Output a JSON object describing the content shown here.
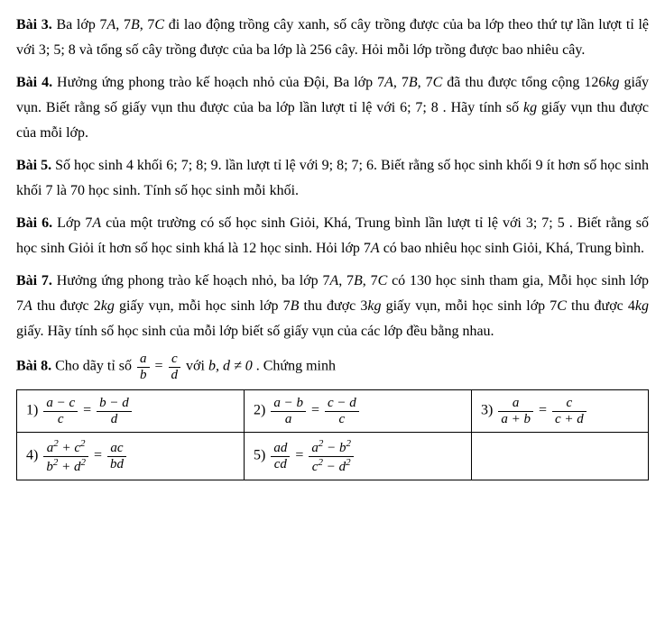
{
  "bai3": {
    "label": "Bài 3.",
    "t1": " Ba lớp 7",
    "A": "A",
    "t2": ", 7",
    "B": "B",
    "t3": ", 7",
    "C": "C",
    "t4": " đi lao động trồng cây xanh, số cây trồng được của ba lớp theo thứ tự lần lượt tỉ lệ với 3; 5; 8 và tổng số cây trồng được của ba lớp là 256 cây. Hỏi mỗi lớp trồng được bao nhiêu cây."
  },
  "bai4": {
    "label": "Bài 4.",
    "t1": " Hưởng ứng phong trào kế hoạch nhỏ của Đội, Ba lớp 7",
    "A": "A",
    "t2": ", 7",
    "B": "B",
    "t3": ", 7",
    "C": "C",
    "t4": " đã thu được tổng cộng 126",
    "kg1": "kg",
    "t5": " giấy vụn. Biết rằng số giấy vụn thu được của ba lớp lần lượt tỉ lệ với 6; 7; 8 . Hãy tính số ",
    "kg2": "kg",
    "t6": " giấy vụn thu được của mỗi lớp."
  },
  "bai5": {
    "label": "Bài 5.",
    "t1": " Số học sinh 4 khối 6; 7; 8; 9. lần lượt tỉ lệ với 9; 8; 7; 6. Biết rằng số học sinh khối 9 ít hơn số học sinh khối 7 là 70 học sinh. Tính số học sinh mỗi khối."
  },
  "bai6": {
    "label": "Bài 6.",
    "t1": " Lớp 7",
    "A": "A",
    "t2": " của một trường có số học sinh Giỏi, Khá, Trung bình lần lượt tỉ lệ với 3; 7; 5 . Biết rằng số học sinh Giỏi ít hơn số học sinh khá là 12 học sinh. Hỏi lớp 7",
    "A2": "A",
    "t3": " có bao nhiêu học sinh Giỏi, Khá, Trung bình."
  },
  "bai7": {
    "label": "Bài 7.",
    "t1": " Hưởng ứng phong trào kế hoạch nhỏ, ba lớp 7",
    "A": "A",
    "t2": ", 7",
    "B": "B",
    "t3": ", 7",
    "C": "C",
    "t4": " có 130 học sinh tham gia, Mỗi học sinh lớp 7",
    "A2": "A",
    "t5": " thu được 2",
    "kg1": "kg",
    "t6": " giấy vụn, mỗi học sinh lớp 7",
    "B2": "B",
    "t7": " thu được 3",
    "kg2": "kg",
    "t8": " giấy vụn, mỗi học sinh lớp 7",
    "C2": "C",
    "t9": " thu được 4",
    "kg3": "kg",
    "t10": " giấy. Hãy tính số học sinh của mỗi lớp biết số giấy vụn của các lớp đều bằng nhau."
  },
  "bai8": {
    "label": "Bài 8.",
    "t1": " Cho dãy tỉ số ",
    "f1n": "a",
    "f1d": "b",
    "eq": " = ",
    "f2n": "c",
    "f2d": "d",
    "t2": " với ",
    "cond": "b, d ≠ 0",
    "t3": " . Chứng minh"
  },
  "table": {
    "r1c1": {
      "idx": "1) ",
      "f1n": "a − c",
      "f1d": "c",
      "eq": " = ",
      "f2n": "b − d",
      "f2d": "d"
    },
    "r1c2": {
      "idx": "2) ",
      "f1n": "a − b",
      "f1d": "a",
      "eq": " = ",
      "f2n": "c − d",
      "f2d": "c"
    },
    "r1c3": {
      "idx": "3) ",
      "f1n": "a",
      "f1d": "a + b",
      "eq": " = ",
      "f2n": "c",
      "f2d": "c + d"
    },
    "r2c1": {
      "idx": "4) ",
      "f1n_a": "a",
      "f1n_p": " + ",
      "f1n_c": "c",
      "f1d_b": "b",
      "f1d_p": " + ",
      "f1d_d": "d",
      "eq": " = ",
      "f2n": "ac",
      "f2d": "bd"
    },
    "r2c2": {
      "idx": "5) ",
      "f1n": "ad",
      "f1d": "cd",
      "eq": " = ",
      "f2n_a": "a",
      "f2n_m": " − ",
      "f2n_b": "b",
      "f2d_c": "c",
      "f2d_m": " − ",
      "f2d_d": "d"
    }
  }
}
